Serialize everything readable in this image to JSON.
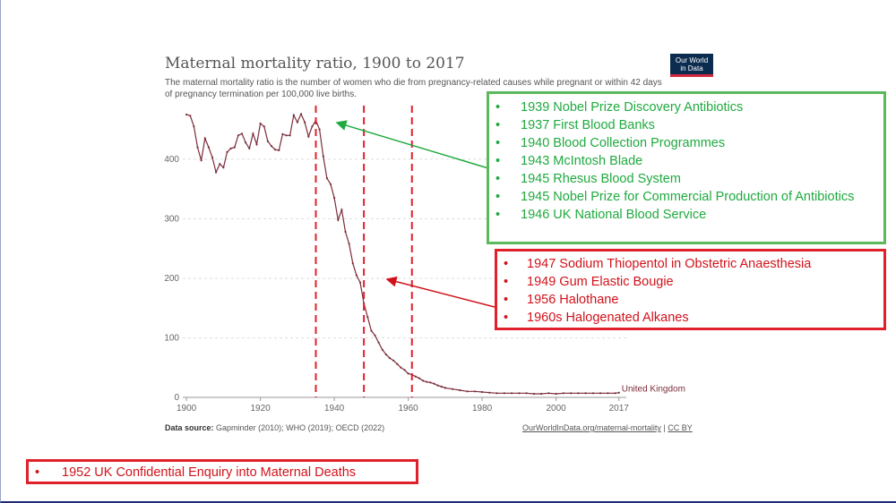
{
  "chart_data": {
    "type": "line",
    "title": "Maternal mortality ratio, 1900 to 2017",
    "subtitle": "The maternal mortality ratio is the number of women who die from pregnancy-related causes while pregnant or within 42 days of pregnancy termination per 100,000 live births.",
    "xlim": [
      1899,
      2019
    ],
    "ylim": [
      0,
      490
    ],
    "x_ticks": [
      "1900",
      "1920",
      "1940",
      "1960",
      "1980",
      "2000",
      "2017"
    ],
    "y_ticks": [
      "0",
      "100",
      "200",
      "300",
      "400"
    ],
    "grid": "horizontal dashed",
    "series": [
      {
        "name": "United Kingdom",
        "color": "#7b2d3a",
        "x": [
          1900,
          1901,
          1902,
          1903,
          1904,
          1905,
          1906,
          1907,
          1908,
          1909,
          1910,
          1911,
          1912,
          1913,
          1914,
          1915,
          1916,
          1917,
          1918,
          1919,
          1920,
          1921,
          1922,
          1923,
          1924,
          1925,
          1926,
          1927,
          1928,
          1929,
          1930,
          1931,
          1932,
          1933,
          1934,
          1935,
          1936,
          1937,
          1938,
          1939,
          1940,
          1941,
          1942,
          1943,
          1944,
          1945,
          1946,
          1947,
          1948,
          1949,
          1950,
          1951,
          1952,
          1953,
          1954,
          1955,
          1956,
          1957,
          1958,
          1959,
          1960,
          1961,
          1962,
          1963,
          1964,
          1965,
          1966,
          1967,
          1968,
          1969,
          1970,
          1972,
          1974,
          1976,
          1978,
          1980,
          1982,
          1984,
          1986,
          1988,
          1990,
          1992,
          1994,
          1996,
          1998,
          2000,
          2002,
          2004,
          2006,
          2008,
          2010,
          2012,
          2014,
          2016,
          2017
        ],
        "y": [
          475,
          473,
          455,
          420,
          398,
          435,
          420,
          403,
          378,
          392,
          386,
          412,
          418,
          420,
          440,
          443,
          428,
          418,
          443,
          425,
          460,
          455,
          430,
          422,
          416,
          415,
          442,
          440,
          440,
          474,
          462,
          476,
          462,
          438,
          455,
          465,
          450,
          405,
          368,
          358,
          335,
          298,
          315,
          278,
          258,
          225,
          205,
          193,
          158,
          135,
          112,
          104,
          92,
          80,
          72,
          66,
          62,
          56,
          50,
          46,
          40,
          38,
          35,
          32,
          28,
          26,
          25,
          23,
          20,
          18,
          16,
          14,
          12,
          10,
          10,
          9,
          8,
          7,
          7,
          7,
          7,
          7,
          6,
          6,
          7,
          6,
          7,
          7,
          7,
          7,
          7,
          7,
          7,
          7,
          8
        ]
      }
    ],
    "end_label": "United Kingdom",
    "reference_lines_x": [
      1935,
      1948,
      1961
    ],
    "source_label": "Data source:",
    "source_text": "Gapminder (2010); WHO (2019); OECD (2022)",
    "source_link": "OurWorldInData.org/maternal-mortality",
    "license": "CC BY"
  },
  "logo": {
    "line1": "Our World",
    "line2": "in Data"
  },
  "green_box": {
    "color": "#1faa3f",
    "items": [
      "1939 Nobel Prize Discovery Antibiotics",
      "1937 First Blood Banks",
      "1940 Blood Collection Programmes",
      "1943 McIntosh Blade",
      "1945 Rhesus Blood System",
      "1945 Nobel Prize for Commercial Production of Antibiotics",
      "1946 UK National Blood Service"
    ]
  },
  "red_box": {
    "color": "#d1121b",
    "items": [
      "1947 Sodium Thiopentol in Obstetric Anaesthesia",
      "1949 Gum Elastic Bougie",
      "1956 Halothane",
      "1960s Halogenated Alkanes"
    ]
  },
  "bottom_box": {
    "items": [
      "1952 UK Confidential Enquiry into Maternal Deaths"
    ]
  },
  "bullet": "•"
}
